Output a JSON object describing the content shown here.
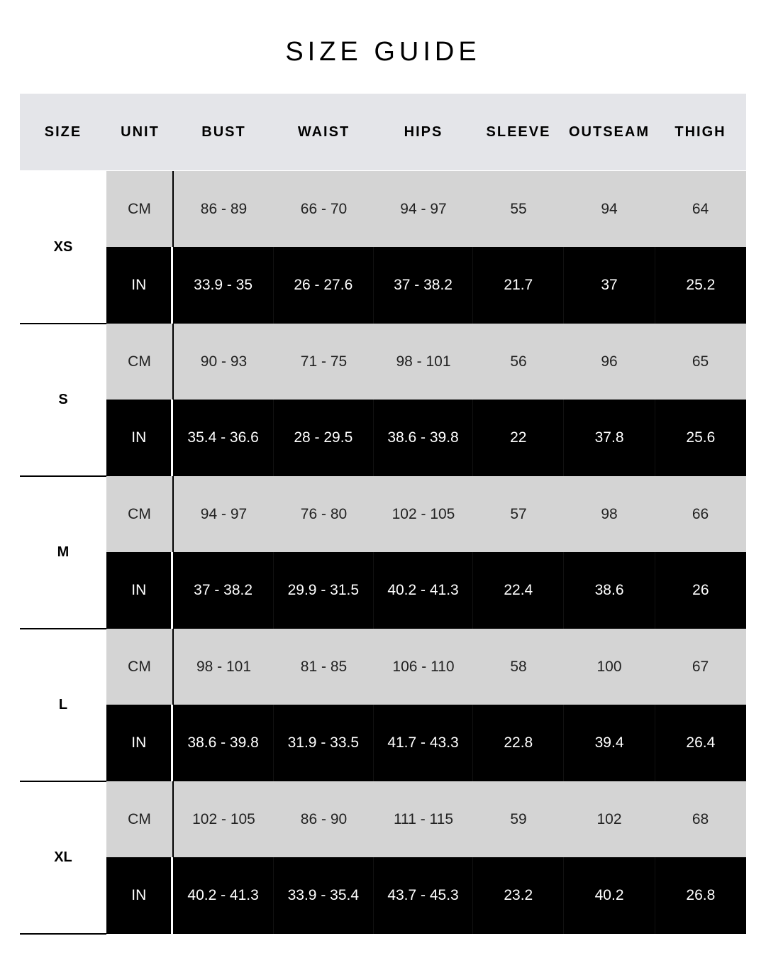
{
  "title": "SIZE GUIDE",
  "headers": [
    "SIZE",
    "UNIT",
    "BUST",
    "WAIST",
    "HIPS",
    "SLEEVE",
    "OUTSEAM",
    "THIGH"
  ],
  "rows": [
    {
      "size": "XS",
      "cm": {
        "unit": "CM",
        "values": [
          "86 - 89",
          "66 - 70",
          "94 - 97",
          "55",
          "94",
          "64"
        ]
      },
      "in": {
        "unit": "IN",
        "values": [
          "33.9 - 35",
          "26 - 27.6",
          "37 - 38.2",
          "21.7",
          "37",
          "25.2"
        ]
      }
    },
    {
      "size": "S",
      "cm": {
        "unit": "CM",
        "values": [
          "90 - 93",
          "71 - 75",
          "98 - 101",
          "56",
          "96",
          "65"
        ]
      },
      "in": {
        "unit": "IN",
        "values": [
          "35.4 - 36.6",
          "28 - 29.5",
          "38.6 - 39.8",
          "22",
          "37.8",
          "25.6"
        ]
      }
    },
    {
      "size": "M",
      "cm": {
        "unit": "CM",
        "values": [
          "94 - 97",
          "76 - 80",
          "102 - 105",
          "57",
          "98",
          "66"
        ]
      },
      "in": {
        "unit": "IN",
        "values": [
          "37 - 38.2",
          "29.9 - 31.5",
          "40.2 - 41.3",
          "22.4",
          "38.6",
          "26"
        ]
      }
    },
    {
      "size": "L",
      "cm": {
        "unit": "CM",
        "values": [
          "98 - 101",
          "81 - 85",
          "106 - 110",
          "58",
          "100",
          "67"
        ]
      },
      "in": {
        "unit": "IN",
        "values": [
          "38.6 - 39.8",
          "31.9 - 33.5",
          "41.7 - 43.3",
          "22.8",
          "39.4",
          "26.4"
        ]
      }
    },
    {
      "size": "XL",
      "cm": {
        "unit": "CM",
        "values": [
          "102 - 105",
          "86 - 90",
          "111 - 115",
          "59",
          "102",
          "68"
        ]
      },
      "in": {
        "unit": "IN",
        "values": [
          "40.2 - 41.3",
          "33.9 - 35.4",
          "43.7 - 45.3",
          "23.2",
          "40.2",
          "26.8"
        ]
      }
    }
  ]
}
